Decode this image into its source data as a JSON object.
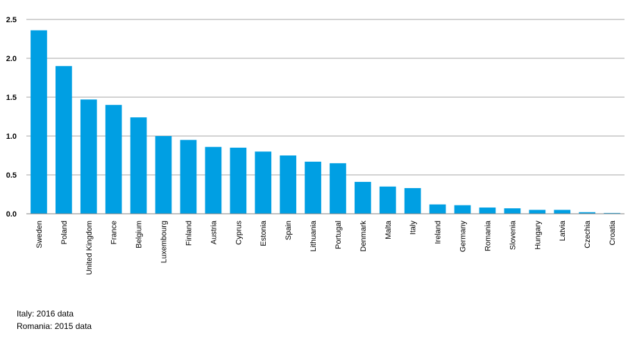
{
  "chart_data": {
    "type": "bar",
    "title": "",
    "xlabel": "",
    "ylabel": "",
    "ylim": [
      0,
      2.5
    ],
    "yticks": [
      "0.0",
      "0.5",
      "1.0",
      "1.5",
      "2.0",
      "2.5"
    ],
    "grid": true,
    "bar_color": "#009fe3",
    "categories": [
      "Sweden",
      "Poland",
      "United Kingdom",
      "France",
      "Belgium",
      "Luxembourg",
      "Finland",
      "Austria",
      "Cyprus",
      "Estonia",
      "Spain",
      "Lithuania",
      "Portugal",
      "Denmark",
      "Malta",
      "Italy",
      "Ireland",
      "Germany",
      "Romania",
      "Slovenia",
      "Hungary",
      "Latvia",
      "Czechia",
      "Croatia"
    ],
    "values": [
      2.36,
      1.9,
      1.47,
      1.4,
      1.24,
      1.0,
      0.95,
      0.86,
      0.85,
      0.8,
      0.75,
      0.67,
      0.65,
      0.41,
      0.35,
      0.33,
      0.12,
      0.11,
      0.08,
      0.07,
      0.05,
      0.05,
      0.02,
      0.01
    ]
  },
  "notes": [
    "Italy: 2016 data",
    "Romania: 2015 data"
  ]
}
